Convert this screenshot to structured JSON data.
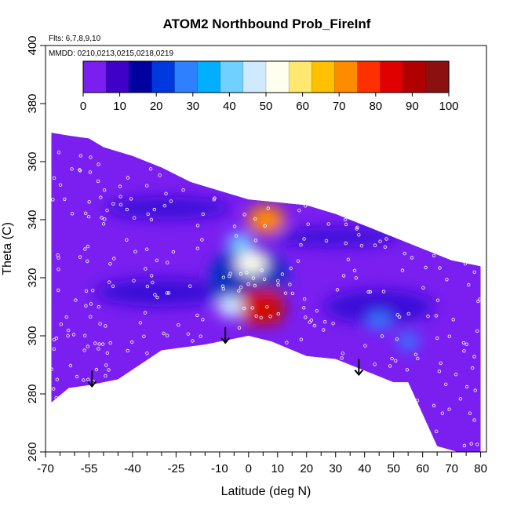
{
  "colors": {
    "colorbar": [
      "#7a1ff0",
      "#3f00c8",
      "#0000a0",
      "#0038e0",
      "#2f80ff",
      "#00b0ff",
      "#70d0ff",
      "#cfeaff",
      "#fffff0",
      "#ffe870",
      "#ffc000",
      "#ff8c00",
      "#ff3000",
      "#e00000",
      "#b00000",
      "#8c1010"
    ],
    "background_fill": "#7a1ff0",
    "low_fill": "#3a10d8",
    "mid_fill": "#0030c0",
    "high_fill": "#d01000",
    "marker": "#ffffff",
    "arrow": "#000000"
  },
  "chart_data": {
    "type": "heatmap",
    "title": "ATOM2 Northbound Prob_FireInf",
    "subtitle_flights": "Flts: 6,7,8,9,10",
    "subtitle_dates": "MMDD: 0210,0213,0215,0218,0219",
    "xlabel": "Latitude (deg N)",
    "ylabel": "Theta (C)",
    "xlim": [
      -70,
      82
    ],
    "ylim": [
      260,
      400
    ],
    "x_tick_labels": [
      "-70",
      "-55",
      "-40",
      "-25",
      "-10",
      "0",
      "10",
      "20",
      "30",
      "40",
      "50",
      "60",
      "70",
      "80"
    ],
    "x_ticks": [
      -70,
      -55,
      -40,
      -25,
      -10,
      0,
      10,
      20,
      30,
      40,
      50,
      60,
      70,
      80
    ],
    "x_minor_ticks": [
      -65,
      -60,
      -50,
      -45,
      -35,
      -30,
      -20,
      -15,
      -5,
      5,
      15,
      25,
      35,
      45,
      55,
      65,
      75
    ],
    "y_tick_labels": [
      "260",
      "280",
      "300",
      "320",
      "340",
      "360",
      "380",
      "400"
    ],
    "y_ticks": [
      260,
      280,
      300,
      320,
      340,
      360,
      380,
      400
    ],
    "colorbar_range": [
      0,
      100
    ],
    "colorbar_tick_labels": [
      "0",
      "10",
      "20",
      "30",
      "40",
      "50",
      "60",
      "70",
      "80",
      "90",
      "100"
    ],
    "domain_top": [
      [
        -68,
        370
      ],
      [
        -62,
        369
      ],
      [
        -55,
        368
      ],
      [
        -50,
        365
      ],
      [
        -40,
        362
      ],
      [
        -30,
        358
      ],
      [
        -20,
        353
      ],
      [
        -10,
        350
      ],
      [
        0,
        347
      ],
      [
        10,
        346
      ],
      [
        20,
        345
      ],
      [
        30,
        342
      ],
      [
        40,
        338
      ],
      [
        50,
        334
      ],
      [
        60,
        330
      ],
      [
        70,
        326
      ],
      [
        80,
        324
      ]
    ],
    "domain_bottom": [
      [
        -68,
        277
      ],
      [
        -62,
        282
      ],
      [
        -55,
        283
      ],
      [
        -45,
        285
      ],
      [
        -30,
        295
      ],
      [
        -15,
        297
      ],
      [
        0,
        300
      ],
      [
        8,
        298
      ],
      [
        20,
        293
      ],
      [
        30,
        292
      ],
      [
        40,
        288
      ],
      [
        50,
        284
      ],
      [
        55,
        284
      ],
      [
        65,
        262
      ],
      [
        72,
        260
      ],
      [
        80,
        260
      ]
    ],
    "hotspots": [
      {
        "lat": 5,
        "theta": 310,
        "value": 95
      },
      {
        "lat": 6,
        "theta": 340,
        "value": 70
      },
      {
        "lat": 1,
        "theta": 325,
        "value": 55
      },
      {
        "lat": -6,
        "theta": 310,
        "value": 45
      },
      {
        "lat": -3,
        "theta": 332,
        "value": 38
      },
      {
        "lat": 45,
        "theta": 305,
        "value": 30
      },
      {
        "lat": 55,
        "theta": 298,
        "value": 28
      }
    ],
    "arrows": [
      {
        "lat": -54,
        "theta": 288
      },
      {
        "lat": -8,
        "theta": 303
      },
      {
        "lat": 38,
        "theta": 292
      }
    ]
  }
}
